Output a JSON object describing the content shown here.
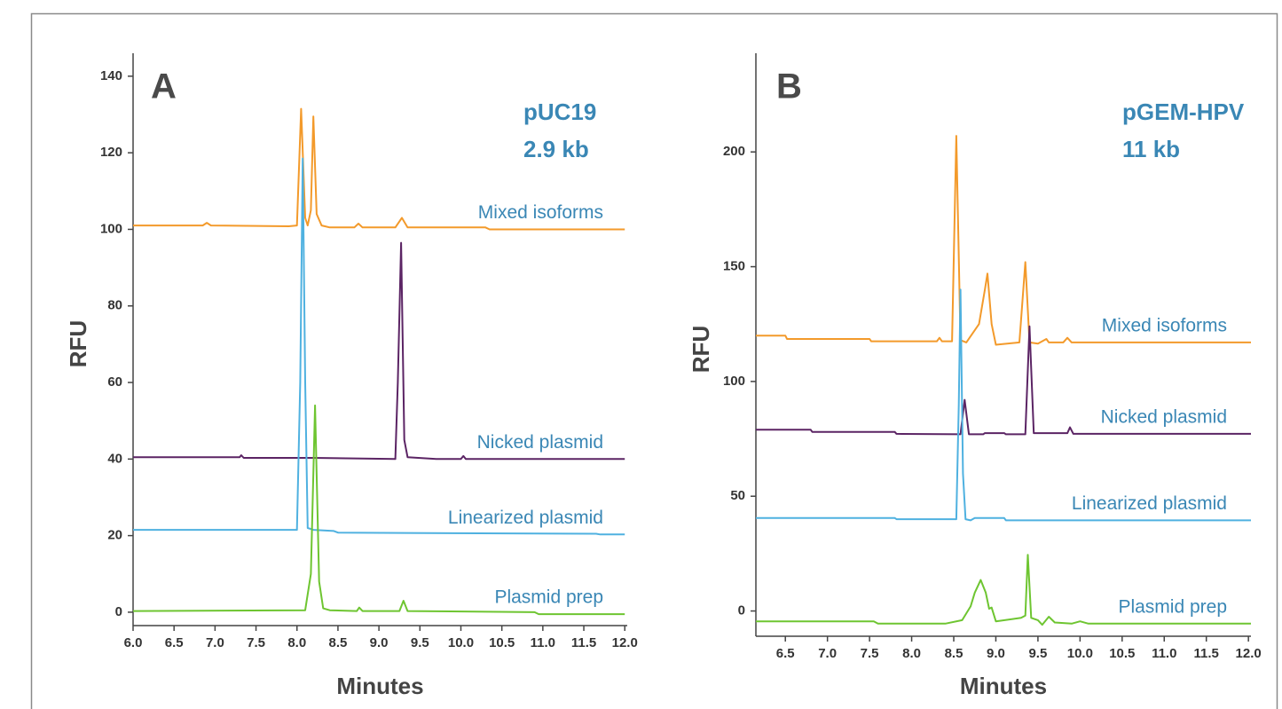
{
  "chart_data": [
    {
      "type": "line",
      "panel_label": "A",
      "annotations": [
        "pUC19",
        "2.9 kb"
      ],
      "xlabel": "Minutes",
      "ylabel": "RFU",
      "xlim": [
        6.0,
        12.03
      ],
      "ylim": [
        -3.5,
        146
      ],
      "xticks": [
        {
          "value": 6.0,
          "label": "6.0"
        },
        {
          "value": 6.5,
          "label": "6.5"
        },
        {
          "value": 7.0,
          "label": "7.0"
        },
        {
          "value": 7.5,
          "label": "7.5"
        },
        {
          "value": 8.0,
          "label": "8.0"
        },
        {
          "value": 8.5,
          "label": "8.5"
        },
        {
          "value": 9.0,
          "label": "9.0"
        },
        {
          "value": 9.5,
          "label": "9.5"
        },
        {
          "value": 10.0,
          "label": "10.0"
        },
        {
          "value": 10.5,
          "label": "10.5"
        },
        {
          "value": 11.0,
          "label": "11.0"
        },
        {
          "value": 11.5,
          "label": "11.5"
        },
        {
          "value": 12.0,
          "label": "12.0"
        }
      ],
      "yticks": [
        0,
        20,
        40,
        60,
        80,
        100,
        120,
        140
      ],
      "series": [
        {
          "name": "Mixed isoforms",
          "color": "#f39a2b",
          "x": [
            6.0,
            6.85,
            6.9,
            6.95,
            7.9,
            8.0,
            8.05,
            8.1,
            8.13,
            8.17,
            8.2,
            8.24,
            8.3,
            8.4,
            8.7,
            8.75,
            8.8,
            9.2,
            9.28,
            9.35,
            10.3,
            10.35,
            12.0
          ],
          "values": [
            101,
            101,
            101.7,
            101,
            100.8,
            101,
            131.5,
            103,
            101,
            105,
            129.5,
            104,
            101,
            100.5,
            100.5,
            101.5,
            100.5,
            100.5,
            103,
            100.5,
            100.5,
            100,
            100
          ]
        },
        {
          "name": "Nicked plasmid",
          "color": "#5b2464",
          "x": [
            6.0,
            7.3,
            7.32,
            7.35,
            8.2,
            9.2,
            9.23,
            9.27,
            9.31,
            9.35,
            9.7,
            10.0,
            10.03,
            10.06,
            12.0
          ],
          "values": [
            40.5,
            40.5,
            41,
            40.3,
            40.3,
            40,
            60,
            96.5,
            45,
            40.5,
            40,
            40,
            40.8,
            40,
            40
          ]
        },
        {
          "name": "Linearized plasmid",
          "color": "#4fb1e0",
          "x": [
            6.0,
            8.0,
            8.04,
            8.07,
            8.1,
            8.13,
            8.2,
            8.45,
            8.5,
            9.3,
            11.65,
            11.7,
            12.0
          ],
          "values": [
            21.5,
            21.5,
            60,
            118.5,
            60,
            22,
            21.5,
            21.2,
            20.8,
            20.7,
            20.5,
            20.3,
            20.3
          ]
        },
        {
          "name": "Plasmid prep",
          "color": "#6ec531",
          "x": [
            6.0,
            8.1,
            8.17,
            8.22,
            8.27,
            8.32,
            8.4,
            8.73,
            8.76,
            8.8,
            9.25,
            9.3,
            9.35,
            10.9,
            10.95,
            12.0
          ],
          "values": [
            0.3,
            0.5,
            10,
            54,
            8,
            1,
            0.5,
            0.3,
            1.2,
            0.3,
            0.3,
            3,
            0.3,
            0,
            -0.5,
            -0.5
          ]
        }
      ]
    },
    {
      "type": "line",
      "panel_label": "B",
      "annotations": [
        "pGEM-HPV",
        "11 kb"
      ],
      "xlabel": "Minutes",
      "ylabel": "RFU",
      "xlim": [
        6.15,
        12.03
      ],
      "ylim": [
        -11,
        243
      ],
      "xticks": [
        {
          "value": 6.5,
          "label": "6.5"
        },
        {
          "value": 7.0,
          "label": "7.0"
        },
        {
          "value": 7.5,
          "label": "7.5"
        },
        {
          "value": 8.0,
          "label": "8.0"
        },
        {
          "value": 8.5,
          "label": "8.5"
        },
        {
          "value": 9.0,
          "label": "9.0"
        },
        {
          "value": 9.5,
          "label": "9.5"
        },
        {
          "value": 10.0,
          "label": "10.0"
        },
        {
          "value": 10.5,
          "label": "10.5"
        },
        {
          "value": 11.0,
          "label": "11.0"
        },
        {
          "value": 11.5,
          "label": "11.5"
        },
        {
          "value": 12.0,
          "label": "12.0"
        }
      ],
      "yticks": [
        0,
        50,
        100,
        150,
        200
      ],
      "series": [
        {
          "name": "Mixed isoforms",
          "color": "#f39a2b",
          "x": [
            6.15,
            6.5,
            6.52,
            7.5,
            7.52,
            8.3,
            8.33,
            8.36,
            8.48,
            8.53,
            8.58,
            8.65,
            8.8,
            8.87,
            8.9,
            8.95,
            9.0,
            9.28,
            9.35,
            9.4,
            9.5,
            9.6,
            9.63,
            9.8,
            9.85,
            9.9,
            12.03
          ],
          "values": [
            120,
            120,
            118.5,
            118.5,
            117.5,
            117.5,
            119,
            117.5,
            117.5,
            207,
            118,
            117,
            125,
            140,
            147,
            125,
            116,
            117,
            152,
            117,
            116.5,
            118.5,
            117,
            117,
            119,
            117,
            117
          ]
        },
        {
          "name": "Nicked plasmid",
          "color": "#5b2464",
          "x": [
            6.15,
            6.8,
            6.82,
            7.8,
            7.82,
            8.58,
            8.63,
            8.68,
            8.85,
            8.87,
            9.1,
            9.12,
            9.35,
            9.4,
            9.45,
            9.85,
            9.88,
            9.92,
            12.03
          ],
          "values": [
            79,
            79,
            78,
            78,
            77.2,
            77,
            92,
            77,
            77,
            77.5,
            77.5,
            77,
            77,
            124,
            77.5,
            77.5,
            80,
            77.2,
            77.2
          ]
        },
        {
          "name": "Linearized plasmid",
          "color": "#4fb1e0",
          "x": [
            6.15,
            7.8,
            7.82,
            8.53,
            8.56,
            8.58,
            8.61,
            8.64,
            8.7,
            8.75,
            9.1,
            9.12,
            12.03
          ],
          "values": [
            40.5,
            40.5,
            40,
            40,
            90,
            140,
            60,
            40,
            39.5,
            40.5,
            40.5,
            39.5,
            39.5
          ]
        },
        {
          "name": "Plasmid prep",
          "color": "#6ec531",
          "x": [
            6.15,
            7.55,
            7.6,
            8.4,
            8.6,
            8.7,
            8.75,
            8.82,
            8.88,
            8.92,
            8.95,
            9.0,
            9.3,
            9.35,
            9.38,
            9.42,
            9.5,
            9.55,
            9.63,
            9.7,
            9.9,
            10.0,
            10.1,
            12.03
          ],
          "values": [
            -4.5,
            -4.5,
            -5.5,
            -5.5,
            -4,
            2,
            8,
            13.5,
            8,
            1,
            1.5,
            -4.5,
            -3,
            -2,
            24.5,
            -3,
            -4,
            -6,
            -2.5,
            -5,
            -5.5,
            -4.5,
            -5.5,
            -5.5
          ]
        }
      ]
    }
  ]
}
